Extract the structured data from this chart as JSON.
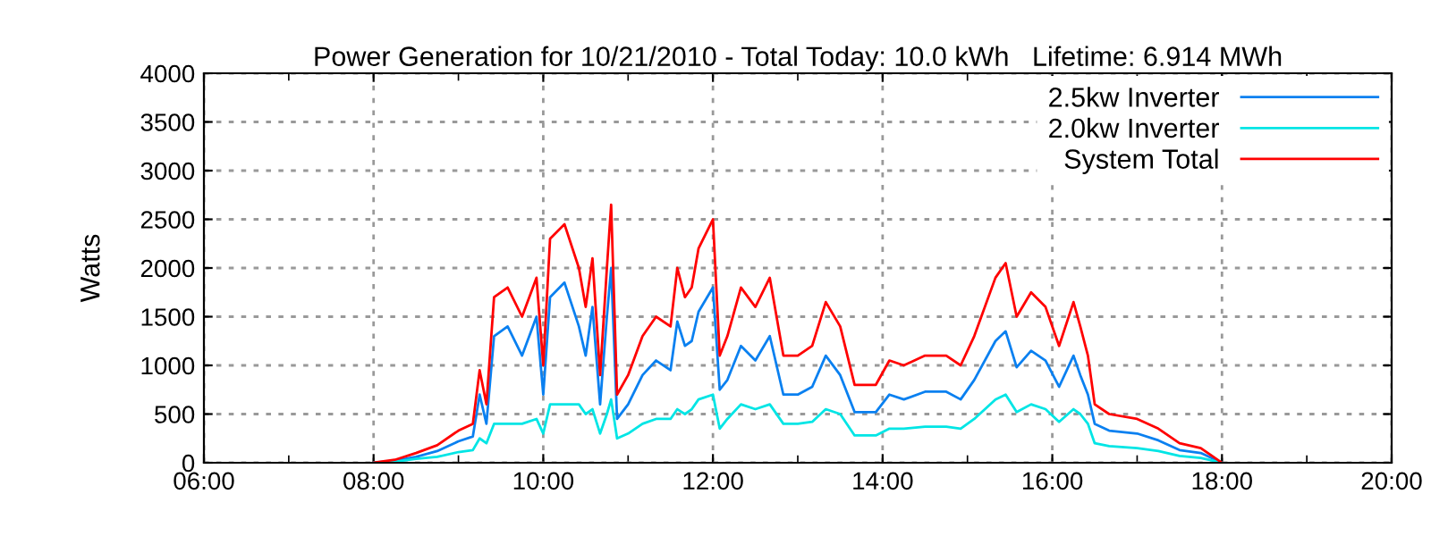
{
  "chart_data": {
    "type": "line",
    "title": "Power Generation for 10/21/2010 - Total Today: 10.0 kWh   Lifetime: 6.914 MWh",
    "ylabel": "Watts",
    "x": [
      8.0,
      8.25,
      8.5,
      8.75,
      9.0,
      9.17,
      9.25,
      9.33,
      9.42,
      9.58,
      9.75,
      9.92,
      10.0,
      10.08,
      10.25,
      10.42,
      10.5,
      10.58,
      10.67,
      10.75,
      10.8,
      10.87,
      11.0,
      11.17,
      11.33,
      11.5,
      11.58,
      11.67,
      11.75,
      11.83,
      12.0,
      12.08,
      12.17,
      12.33,
      12.5,
      12.67,
      12.83,
      13.0,
      13.17,
      13.33,
      13.5,
      13.67,
      13.92,
      14.08,
      14.25,
      14.5,
      14.75,
      14.92,
      15.08,
      15.33,
      15.45,
      15.58,
      15.75,
      15.92,
      16.08,
      16.25,
      16.33,
      16.42,
      16.5,
      16.67,
      17.0,
      17.25,
      17.5,
      17.75,
      18.0
    ],
    "series": [
      {
        "name": "2.5kw Inverter",
        "color": "#0a80f0",
        "values": [
          0,
          20,
          60,
          120,
          220,
          270,
          700,
          400,
          1300,
          1400,
          1100,
          1500,
          700,
          1700,
          1850,
          1400,
          1100,
          1600,
          600,
          1500,
          2000,
          450,
          600,
          900,
          1050,
          950,
          1450,
          1200,
          1250,
          1550,
          1800,
          750,
          850,
          1200,
          1050,
          1300,
          700,
          700,
          780,
          1100,
          900,
          520,
          520,
          700,
          650,
          730,
          730,
          650,
          850,
          1250,
          1350,
          980,
          1150,
          1050,
          780,
          1100,
          900,
          700,
          400,
          330,
          300,
          230,
          130,
          100,
          0
        ]
      },
      {
        "name": "2.0kw Inverter",
        "color": "#00e5e5",
        "values": [
          0,
          10,
          40,
          60,
          110,
          130,
          250,
          200,
          400,
          400,
          400,
          450,
          300,
          600,
          600,
          600,
          500,
          550,
          300,
          500,
          650,
          250,
          300,
          400,
          450,
          450,
          550,
          500,
          550,
          650,
          700,
          350,
          450,
          600,
          550,
          600,
          400,
          400,
          420,
          550,
          500,
          280,
          280,
          350,
          350,
          370,
          370,
          350,
          450,
          650,
          700,
          520,
          600,
          550,
          420,
          550,
          500,
          400,
          200,
          170,
          150,
          120,
          70,
          50,
          0
        ]
      },
      {
        "name": "System Total",
        "color": "#ff0000",
        "values": [
          0,
          30,
          100,
          180,
          330,
          400,
          950,
          600,
          1700,
          1800,
          1500,
          1900,
          1000,
          2300,
          2450,
          2000,
          1600,
          2100,
          900,
          2000,
          2650,
          700,
          900,
          1300,
          1500,
          1400,
          2000,
          1700,
          1800,
          2200,
          2500,
          1100,
          1300,
          1800,
          1600,
          1900,
          1100,
          1100,
          1200,
          1650,
          1400,
          800,
          800,
          1050,
          1000,
          1100,
          1100,
          1000,
          1300,
          1900,
          2050,
          1500,
          1750,
          1600,
          1200,
          1650,
          1400,
          1100,
          600,
          500,
          450,
          350,
          200,
          150,
          0
        ]
      }
    ],
    "xlim": [
      6,
      20
    ],
    "xticks": [
      {
        "value": 6,
        "label": "06:00"
      },
      {
        "value": 7,
        "label": null
      },
      {
        "value": 8,
        "label": "08:00"
      },
      {
        "value": 9,
        "label": null
      },
      {
        "value": 10,
        "label": "10:00"
      },
      {
        "value": 11,
        "label": null
      },
      {
        "value": 12,
        "label": "12:00"
      },
      {
        "value": 13,
        "label": null
      },
      {
        "value": 14,
        "label": "14:00"
      },
      {
        "value": 15,
        "label": null
      },
      {
        "value": 16,
        "label": "16:00"
      },
      {
        "value": 17,
        "label": null
      },
      {
        "value": 18,
        "label": "18:00"
      },
      {
        "value": 19,
        "label": null
      },
      {
        "value": 20,
        "label": "20:00"
      }
    ],
    "ylim": [
      0,
      4000
    ],
    "yticks": [
      0,
      500,
      1000,
      1500,
      2000,
      2500,
      3000,
      3500,
      4000
    ],
    "grid": true,
    "legend": "top right",
    "line_style": "solid",
    "marker": "none"
  }
}
